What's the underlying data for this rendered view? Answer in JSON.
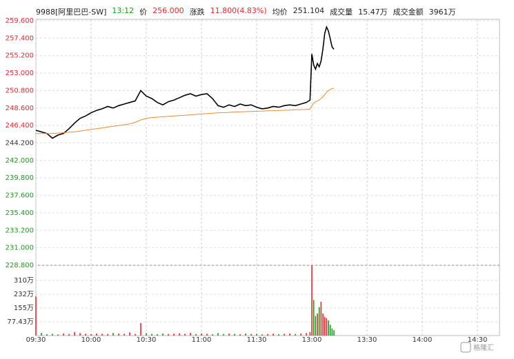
{
  "header": {
    "symbol": "9988[阿里巴巴-SW]",
    "time": "13:12",
    "items": [
      {
        "label": "价",
        "value": "256.000"
      },
      {
        "label": "涨跌",
        "value": "11.800(4.83%)"
      },
      {
        "label": "均价",
        "value": "251.104"
      },
      {
        "label": "成交量",
        "value": "15.47万"
      },
      {
        "label": "成交金额",
        "value": "3961万"
      }
    ]
  },
  "watermark": "格隆汇",
  "chart_data": {
    "type": "line",
    "x": [
      0,
      3,
      6,
      9,
      12,
      15,
      18,
      21,
      24,
      27,
      30,
      33,
      36,
      39,
      42,
      45,
      48,
      51,
      54,
      57,
      60,
      63,
      66,
      69,
      72,
      75,
      78,
      81,
      84,
      87,
      90,
      93,
      96,
      99,
      102,
      105,
      108,
      111,
      114,
      117,
      120,
      123,
      126,
      129,
      132,
      135,
      138,
      141,
      144,
      147,
      149,
      150,
      151,
      152,
      153,
      154,
      155,
      156,
      157,
      158,
      159,
      160,
      161,
      162
    ],
    "xlim": [
      0,
      252
    ],
    "xticks": [
      {
        "value": 0,
        "label": "09:30"
      },
      {
        "value": 30,
        "label": "10:00"
      },
      {
        "value": 60,
        "label": "10:30"
      },
      {
        "value": 90,
        "label": "11:00"
      },
      {
        "value": 120,
        "label": "11:30"
      },
      {
        "value": 150,
        "label": "13:00"
      },
      {
        "value": 180,
        "label": "13:30"
      },
      {
        "value": 210,
        "label": "14:00"
      },
      {
        "value": 240,
        "label": "14:30"
      }
    ],
    "ylim": [
      228.8,
      259.6
    ],
    "yticks": [
      {
        "value": 259.6,
        "label": "259.600"
      },
      {
        "value": 257.4,
        "label": "257.400"
      },
      {
        "value": 255.2,
        "label": "255.200"
      },
      {
        "value": 253,
        "label": "253.000"
      },
      {
        "value": 250.8,
        "label": "250.800"
      },
      {
        "value": 248.6,
        "label": "248.600"
      },
      {
        "value": 246.4,
        "label": "246.400"
      },
      {
        "value": 244.2,
        "label": "244.200"
      },
      {
        "value": 242,
        "label": "242.000"
      },
      {
        "value": 239.8,
        "label": "239.800"
      },
      {
        "value": 237.6,
        "label": "237.600"
      },
      {
        "value": 235.4,
        "label": "235.400"
      },
      {
        "value": 233.2,
        "label": "233.200"
      },
      {
        "value": 231,
        "label": "231.000"
      },
      {
        "value": 228.8,
        "label": "228.800"
      }
    ],
    "series": [
      {
        "color": "#000000",
        "values": [
          245.8,
          245.6,
          245.4,
          244.8,
          245.2,
          245.4,
          246.0,
          246.7,
          247.3,
          247.6,
          248.0,
          248.3,
          248.5,
          248.8,
          248.6,
          248.9,
          249.1,
          249.3,
          249.5,
          250.8,
          250.1,
          249.8,
          249.3,
          249.0,
          249.4,
          249.6,
          249.9,
          250.2,
          250.4,
          250.1,
          250.3,
          250.4,
          249.8,
          248.9,
          248.7,
          249.0,
          248.8,
          249.1,
          248.9,
          249.0,
          248.7,
          248.5,
          248.6,
          248.8,
          248.7,
          248.9,
          249.0,
          248.9,
          249.1,
          249.3,
          249.6,
          255.4,
          254.0,
          253.5,
          254.2,
          253.8,
          254.5,
          256.0,
          258.0,
          258.8,
          258.3,
          257.3,
          256.3,
          256.0
        ]
      },
      {
        "color": "#f08a2c",
        "values": [
          245.4,
          245.4,
          245.4,
          245.4,
          245.45,
          245.5,
          245.55,
          245.6,
          245.7,
          245.8,
          245.9,
          246.0,
          246.1,
          246.2,
          246.3,
          246.4,
          246.5,
          246.6,
          246.8,
          247.1,
          247.3,
          247.4,
          247.45,
          247.5,
          247.55,
          247.6,
          247.65,
          247.7,
          247.75,
          247.8,
          247.85,
          247.9,
          247.95,
          248.0,
          248.02,
          248.05,
          248.1,
          248.12,
          248.15,
          248.18,
          248.2,
          248.22,
          248.25,
          248.27,
          248.3,
          248.32,
          248.35,
          248.37,
          248.4,
          248.42,
          248.45,
          248.9,
          249.2,
          249.4,
          249.5,
          249.6,
          249.8,
          250.0,
          250.3,
          250.6,
          250.8,
          250.95,
          251.05,
          251.1
        ]
      }
    ],
    "volume": {
      "values": [
        220,
        15,
        8,
        10,
        6,
        12,
        9,
        20,
        14,
        10,
        8,
        12,
        10,
        9,
        15,
        11,
        10,
        18,
        9,
        70,
        14,
        10,
        8,
        12,
        9,
        11,
        13,
        10,
        15,
        9,
        12,
        10,
        8,
        14,
        9,
        11,
        10,
        8,
        12,
        9,
        10,
        7,
        9,
        11,
        8,
        10,
        12,
        9,
        11,
        14,
        20,
        395,
        200,
        110,
        124,
        160,
        190,
        124,
        105,
        97,
        85,
        60,
        40,
        30
      ],
      "ylim": [
        0,
        395
      ],
      "yticks": [
        {
          "value": 77.43,
          "label": "77.43万"
        },
        {
          "value": 155,
          "label": "155万"
        },
        {
          "value": 232,
          "label": "232万"
        },
        {
          "value": 310,
          "label": "310万"
        }
      ]
    },
    "up_color": "#e8262b",
    "down_color": "#1a9a1a",
    "grid": true
  }
}
